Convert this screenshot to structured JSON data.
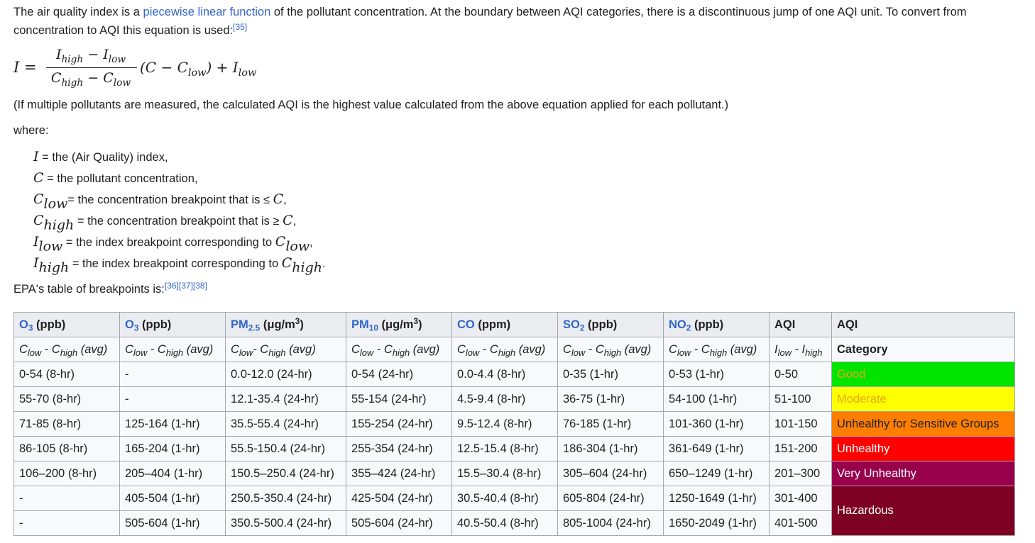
{
  "intro": {
    "before_link": "The air quality index is a ",
    "link": "piecewise linear function",
    "after_link": " of the pollutant concentration. At the boundary between AQI categories, there is a discontinuous jump of one AQI unit. To convert from",
    "line2": "concentration to AQI this equation is used:",
    "ref": "[35]"
  },
  "formula": {
    "lhs": "I =",
    "num": "I",
    "num_sub1": "high",
    "num_mid": " − I",
    "num_sub2": "low",
    "den": "C",
    "den_sub1": "high",
    "den_mid": " − C",
    "den_sub2": "low",
    "rhs_a": "(C − C",
    "rhs_sub1": "low",
    "rhs_b": ") + I",
    "rhs_sub2": "low"
  },
  "note": "(If multiple pollutants are measured, the calculated AQI is the highest value calculated from the above equation applied for each pollutant.)",
  "where": "where:",
  "definitions": [
    {
      "var": "I",
      "sub": "",
      "text": " = the (Air Quality) index,",
      "ref_var": "",
      "ref_sub": "",
      "tail": ""
    },
    {
      "var": "C",
      "sub": "",
      "text": " = the pollutant concentration,",
      "ref_var": "",
      "ref_sub": "",
      "tail": ""
    },
    {
      "var": "C",
      "sub": "low",
      "text": "= the concentration breakpoint that is ≤ ",
      "ref_var": "C",
      "ref_sub": "",
      "tail": ","
    },
    {
      "var": "C",
      "sub": "high",
      "text": " = the concentration breakpoint that is ≥ ",
      "ref_var": "C",
      "ref_sub": "",
      "tail": ","
    },
    {
      "var": "I",
      "sub": "low",
      "text": " = the index breakpoint corresponding to ",
      "ref_var": "C",
      "ref_sub": "low",
      "tail": ","
    },
    {
      "var": "I",
      "sub": "high",
      "text": " = the index breakpoint corresponding to ",
      "ref_var": "C",
      "ref_sub": "high",
      "tail": "."
    }
  ],
  "epa": {
    "text": "EPA's table of breakpoints is:",
    "refs": "[36][37][38]"
  },
  "table": {
    "headers": [
      {
        "pre": "O",
        "sub": "3",
        "sup": "",
        "post": " (ppb)"
      },
      {
        "pre": "O",
        "sub": "3",
        "sup": "",
        "post": " (ppb)"
      },
      {
        "pre": "PM",
        "sub": "2.5",
        "sup": "3",
        "post": " (μg/m",
        "end": ")"
      },
      {
        "pre": "PM",
        "sub": "10",
        "sup": "3",
        "post": " (μg/m",
        "end": ")"
      },
      {
        "pre": "CO",
        "sub": "",
        "sup": "",
        "post": " (ppm)"
      },
      {
        "pre": "SO",
        "sub": "2",
        "sup": "",
        "post": " (ppb)"
      },
      {
        "pre": "NO",
        "sub": "2",
        "sup": "",
        "post": " (ppb)"
      },
      {
        "pre": "AQI",
        "sub": "",
        "sup": "",
        "post": ""
      },
      {
        "pre": "AQI",
        "sub": "",
        "sup": "",
        "post": ""
      }
    ],
    "subheaders": {
      "conc": {
        "c1": "C",
        "s1": "low",
        "mid": " - C",
        "s2": "high",
        "end": " (avg)"
      },
      "conc_pm25": {
        "c1": "C",
        "s1": "low",
        "mid": "- C",
        "s2": "high",
        "end": " (avg)"
      },
      "aqi": {
        "c1": "I",
        "s1": "low",
        "mid": " - I",
        "s2": "high"
      },
      "category": "Category"
    },
    "rows": [
      [
        "0-54 (8-hr)",
        "-",
        "0.0-12.0 (24-hr)",
        "0-54 (24-hr)",
        "0.0-4.4 (8-hr)",
        "0-35 (1-hr)",
        "0-53 (1-hr)",
        "0-50"
      ],
      [
        "55-70 (8-hr)",
        "-",
        "12.1-35.4 (24-hr)",
        "55-154 (24-hr)",
        "4.5-9.4 (8-hr)",
        "36-75 (1-hr)",
        "54-100 (1-hr)",
        "51-100"
      ],
      [
        "71-85 (8-hr)",
        "125-164 (1-hr)",
        "35.5-55.4 (24-hr)",
        "155-254 (24-hr)",
        "9.5-12.4 (8-hr)",
        "76-185 (1-hr)",
        "101-360 (1-hr)",
        "101-150"
      ],
      [
        "86-105 (8-hr)",
        "165-204 (1-hr)",
        "55.5-150.4 (24-hr)",
        "255-354 (24-hr)",
        "12.5-15.4 (8-hr)",
        "186-304 (1-hr)",
        "361-649 (1-hr)",
        "151-200"
      ],
      [
        "106–200 (8-hr)",
        "205–404 (1-hr)",
        "150.5–250.4 (24-hr)",
        "355–424 (24-hr)",
        "15.5–30.4 (8-hr)",
        "305–604 (24-hr)",
        "650–1249 (1-hr)",
        "201–300"
      ],
      [
        "-",
        "405-504 (1-hr)",
        "250.5-350.4 (24-hr)",
        "425-504 (24-hr)",
        "30.5-40.4 (8-hr)",
        "605-804 (24-hr)",
        "1250-1649 (1-hr)",
        "301-400"
      ],
      [
        "-",
        "505-604 (1-hr)",
        "350.5-500.4 (24-hr)",
        "505-604 (24-hr)",
        "40.5-50.4 (8-hr)",
        "805-1004 (24-hr)",
        "1650-2049 (1-hr)",
        "401-500"
      ]
    ],
    "categories": [
      {
        "label": "Good",
        "bg": "#00e400",
        "fg": "#e6a817"
      },
      {
        "label": "Moderate",
        "bg": "#ffff00",
        "fg": "#e6a817"
      },
      {
        "label": "Unhealthy for Sensitive Groups",
        "bg": "#ff7e00",
        "fg": "#202122"
      },
      {
        "label": "Unhealthy",
        "bg": "#ff0000",
        "fg": "#ffffff"
      },
      {
        "label": "Very Unhealthy",
        "bg": "#99004c",
        "fg": "#ffffff"
      },
      {
        "label": "Hazardous",
        "bg": "#7e0023",
        "fg": "#ffffff"
      }
    ]
  }
}
